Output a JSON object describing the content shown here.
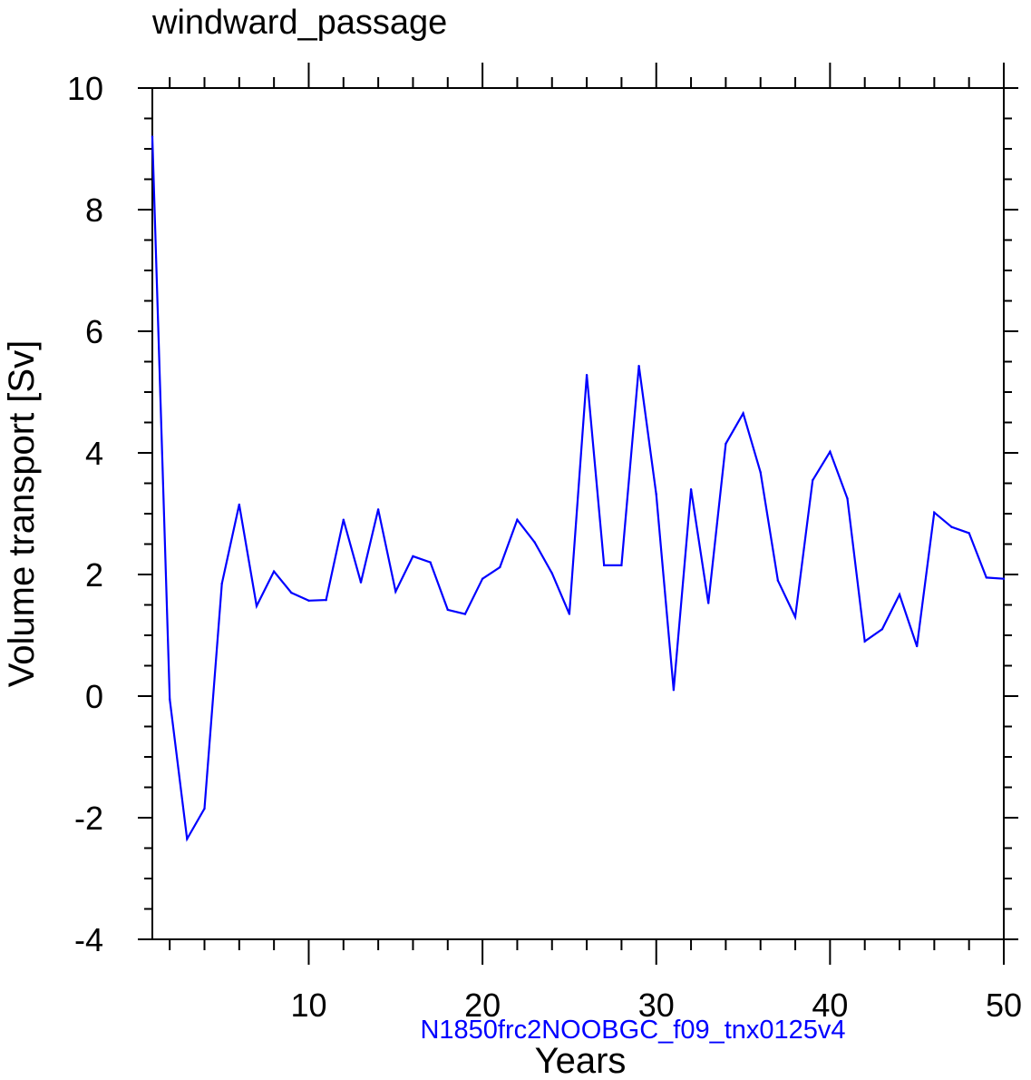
{
  "chart_data": {
    "type": "line",
    "title": "windward_passage",
    "subtitle": "N1850frc2NOOBGC_f09_tnx0125v4",
    "xlabel": "Years",
    "ylabel": "Volume transport [Sv]",
    "xlim": [
      0,
      50
    ],
    "ylim": [
      -4,
      10
    ],
    "xticks": [
      10,
      20,
      30,
      40,
      50
    ],
    "yticks": [
      -4,
      -2,
      0,
      2,
      4,
      6,
      8,
      10
    ],
    "grid": false,
    "line_color": "#0000ff",
    "series": [
      {
        "x": [
          1,
          2,
          3,
          4,
          5,
          6,
          7,
          8,
          9,
          10,
          11,
          12,
          13,
          14,
          15,
          16,
          17,
          18,
          19,
          20,
          21,
          22,
          23,
          24,
          25,
          26,
          27,
          28,
          29,
          30,
          31,
          32,
          33,
          34,
          35,
          36,
          37,
          38,
          39,
          40,
          41,
          42,
          43,
          44,
          45,
          46,
          47,
          48,
          49,
          50
        ],
        "values": [
          9.2,
          -0.05,
          -2.35,
          -1.85,
          1.85,
          3.15,
          1.48,
          2.05,
          1.7,
          1.57,
          1.58,
          2.9,
          1.87,
          3.07,
          1.72,
          2.3,
          2.2,
          1.42,
          1.35,
          1.93,
          2.12,
          2.9,
          2.53,
          2.02,
          1.35,
          5.28,
          2.15,
          2.15,
          5.43,
          3.32,
          0.1,
          3.4,
          1.53,
          4.15,
          4.65,
          3.68,
          1.9,
          1.3,
          3.55,
          4.02,
          3.25,
          0.9,
          1.1,
          1.67,
          0.82,
          3.02,
          2.78,
          2.68,
          1.95,
          1.93
        ]
      }
    ]
  }
}
